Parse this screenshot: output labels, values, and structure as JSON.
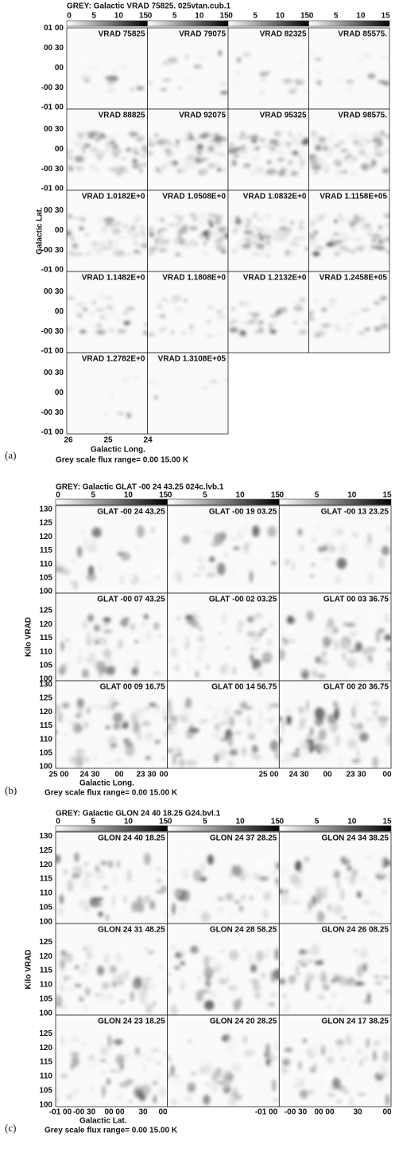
{
  "panels": [
    {
      "tag": "(a)",
      "title": "GREY: Galactic  VRAD 75825.  025vtan.cub.1",
      "colorbar_ticks": [
        "0",
        "5",
        "10",
        "15"
      ],
      "ylabel": "Galactic Lat.",
      "xlabel": "Galactic Long.",
      "footer": "Grey scale flux range= 0.00 15.00 K",
      "xticks": [
        "26",
        "25",
        "24"
      ],
      "rows": [
        {
          "yticks": [
            "01 00",
            "00 30",
            "00",
            "-00 30",
            "-01 00"
          ],
          "cells": [
            "VRAD 75825",
            "VRAD 79075",
            "VRAD 82325",
            "VRAD 85575."
          ]
        },
        {
          "yticks": [
            "00 30",
            "00",
            "-00 30",
            "-01 00"
          ],
          "cells": [
            "VRAD 88825",
            "VRAD 92075",
            "VRAD 95325",
            "VRAD 98575."
          ]
        },
        {
          "yticks": [
            "00 30",
            "00",
            "-00 30",
            "-01 00"
          ],
          "cells": [
            "VRAD 1.0182E+0",
            "VRAD 1.0508E+0",
            "VRAD 1.0832E+0",
            "VRAD 1.1158E+05"
          ]
        },
        {
          "yticks": [
            "00 30",
            "00",
            "-00 30",
            "-01 00"
          ],
          "cells": [
            "VRAD 1.1482E+0",
            "VRAD 1.1808E+0",
            "VRAD 1.2132E+0",
            "VRAD 1.2458E+05"
          ]
        },
        {
          "yticks": [
            "00 30",
            "00",
            "-00 30",
            "-01 00"
          ],
          "cells": [
            "VRAD 1.2782E+0",
            "VRAD 1.3108E+05"
          ]
        }
      ]
    },
    {
      "tag": "(b)",
      "title": "GREY: Galactic  GLAT -00 24 43.25  024c.lvb.1",
      "colorbar_ticks": [
        "0",
        "5",
        "10",
        "15"
      ],
      "ylabel": "Kilo VRAD",
      "xlabel": "Galactic Long.",
      "footer": "Grey scale flux range= 0.00 15.00 K",
      "xticks": [
        "25 00",
        "24 30",
        "00",
        "23 30",
        "00",
        "25 00",
        "24 30",
        "00",
        "23 30",
        "00"
      ],
      "rows": [
        {
          "yticks": [
            "130",
            "125",
            "120",
            "115",
            "110",
            "105",
            "100"
          ],
          "cells": [
            "GLAT -00 24 43.25",
            "GLAT -00 19 03.25",
            "GLAT -00 13 23.25"
          ]
        },
        {
          "yticks": [
            "125",
            "120",
            "115",
            "110",
            "105",
            "100"
          ],
          "cells": [
            "GLAT -00 07 43.25",
            "GLAT -00 02 03.25",
            "GLAT 00 03 36.75"
          ]
        },
        {
          "yticks": [
            "130",
            "125",
            "120",
            "115",
            "110",
            "105",
            "100"
          ],
          "cells": [
            "GLAT 00 09 16.75",
            "GLAT 00 14 56.75",
            "GLAT 00 20 36.75"
          ]
        }
      ]
    },
    {
      "tag": "(c)",
      "title": "GREY: Galactic  GLON 24 40 18.25  G24.bvl.1",
      "colorbar_ticks": [
        "0",
        "5",
        "10",
        "15"
      ],
      "ylabel": "Kilo VRAD",
      "xlabel": "Galactic Lat.",
      "footer": "Grey scale flux range= 0.00 15.00 K",
      "xticks": [
        "-01 00",
        "-00 30",
        "00 00",
        "30",
        "00",
        "-01 00",
        "-00 30",
        "00 00",
        "30",
        "00"
      ],
      "rows": [
        {
          "yticks": [
            "130",
            "125",
            "120",
            "115",
            "110",
            "105",
            "100"
          ],
          "cells": [
            "GLON 24 40 18.25",
            "GLON 24 37 28.25",
            "GLON 24 34 38.25"
          ]
        },
        {
          "yticks": [
            "125",
            "120",
            "115",
            "110",
            "105",
            "100"
          ],
          "cells": [
            "GLON 24 31 48.25",
            "GLON 24 28 58.25",
            "GLON 24 26 08.25"
          ]
        },
        {
          "yticks": [
            "125",
            "120",
            "115",
            "110",
            "105",
            "100"
          ],
          "cells": [
            "GLON 24 23 18.25",
            "GLON 24 20 28.25",
            "GLON 24 17 38.25"
          ]
        }
      ]
    }
  ]
}
